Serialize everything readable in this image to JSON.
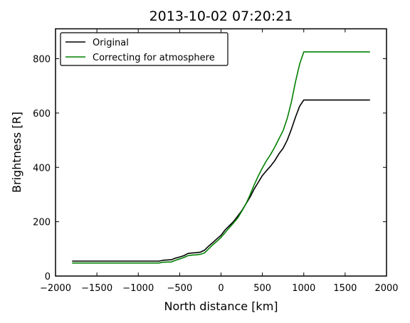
{
  "chart_data": {
    "type": "line",
    "title": "2013-10-02 07:20:21",
    "xlabel": "North distance [km]",
    "ylabel": "Brightness [R]",
    "xlim": [
      -2000,
      2000
    ],
    "ylim": [
      0,
      910
    ],
    "xticks": [
      -2000,
      -1500,
      -1000,
      -500,
      0,
      500,
      1000,
      1500,
      2000
    ],
    "yticks": [
      0,
      200,
      400,
      600,
      800
    ],
    "xtick_labels": [
      "−2000",
      "−1500",
      "−1000",
      "−500",
      "0",
      "500",
      "1000",
      "1500",
      "2000"
    ],
    "ytick_labels": [
      "0",
      "200",
      "400",
      "600",
      "800"
    ],
    "legend_position": "top-left",
    "series": [
      {
        "name": "Original",
        "color": "#000000",
        "points": [
          [
            -1800,
            55
          ],
          [
            -1000,
            55
          ],
          [
            -750,
            55
          ],
          [
            -700,
            58
          ],
          [
            -600,
            60
          ],
          [
            -550,
            66
          ],
          [
            -500,
            70
          ],
          [
            -450,
            75
          ],
          [
            -400,
            83
          ],
          [
            -350,
            85
          ],
          [
            -300,
            86
          ],
          [
            -250,
            88
          ],
          [
            -200,
            95
          ],
          [
            -150,
            110
          ],
          [
            -100,
            123
          ],
          [
            -50,
            137
          ],
          [
            0,
            150
          ],
          [
            50,
            170
          ],
          [
            100,
            185
          ],
          [
            150,
            200
          ],
          [
            200,
            220
          ],
          [
            250,
            240
          ],
          [
            300,
            265
          ],
          [
            350,
            290
          ],
          [
            400,
            320
          ],
          [
            450,
            345
          ],
          [
            500,
            370
          ],
          [
            550,
            388
          ],
          [
            600,
            405
          ],
          [
            650,
            425
          ],
          [
            700,
            450
          ],
          [
            750,
            470
          ],
          [
            800,
            500
          ],
          [
            850,
            540
          ],
          [
            900,
            585
          ],
          [
            950,
            625
          ],
          [
            1000,
            648
          ],
          [
            1800,
            648
          ]
        ]
      },
      {
        "name": "Correcting for atmosphere",
        "color": "#008000",
        "points": [
          [
            -1800,
            48
          ],
          [
            -1000,
            48
          ],
          [
            -750,
            48
          ],
          [
            -700,
            51
          ],
          [
            -600,
            52
          ],
          [
            -550,
            58
          ],
          [
            -500,
            63
          ],
          [
            -450,
            68
          ],
          [
            -400,
            75
          ],
          [
            -350,
            77
          ],
          [
            -300,
            78
          ],
          [
            -250,
            80
          ],
          [
            -200,
            85
          ],
          [
            -150,
            100
          ],
          [
            -100,
            115
          ],
          [
            -50,
            128
          ],
          [
            0,
            142
          ],
          [
            50,
            160
          ],
          [
            100,
            178
          ],
          [
            150,
            195
          ],
          [
            200,
            213
          ],
          [
            250,
            238
          ],
          [
            300,
            265
          ],
          [
            350,
            298
          ],
          [
            400,
            335
          ],
          [
            450,
            368
          ],
          [
            500,
            398
          ],
          [
            550,
            425
          ],
          [
            600,
            448
          ],
          [
            650,
            475
          ],
          [
            700,
            505
          ],
          [
            750,
            535
          ],
          [
            800,
            580
          ],
          [
            850,
            640
          ],
          [
            900,
            715
          ],
          [
            950,
            780
          ],
          [
            1000,
            825
          ],
          [
            1800,
            825
          ]
        ]
      }
    ]
  }
}
